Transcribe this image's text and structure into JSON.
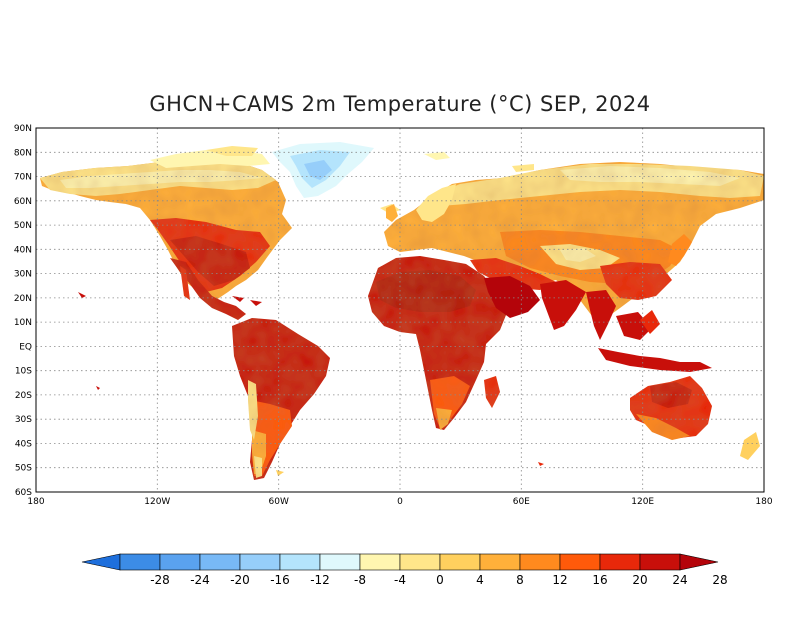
{
  "title": "GHCN+CAMS 2m Temperature (°C) SEP, 2024",
  "lat_labels": [
    "90N",
    "80N",
    "70N",
    "60N",
    "50N",
    "40N",
    "30N",
    "20N",
    "10N",
    "EQ",
    "10S",
    "20S",
    "30S",
    "40S",
    "50S",
    "60S"
  ],
  "lon_labels": [
    "180",
    "120W",
    "60W",
    "0",
    "60E",
    "120E",
    "180"
  ],
  "colorbar": {
    "ticks": [
      "-28",
      "-24",
      "-20",
      "-16",
      "-12",
      "-8",
      "-4",
      "0",
      "4",
      "8",
      "12",
      "16",
      "20",
      "24",
      "28"
    ],
    "colors": [
      "#1e6fdc",
      "#3c8ce6",
      "#5aa2ef",
      "#78b9f6",
      "#96cefa",
      "#b4e4fc",
      "#dff8fc",
      "#fff6b0",
      "#ffe68a",
      "#ffd05e",
      "#ffb03a",
      "#ff8a1e",
      "#ff5a0a",
      "#e8280a",
      "#c80f0a",
      "#b4040a"
    ]
  },
  "regions": [
    {
      "name": "Greenland",
      "color": "#b4e4fc"
    },
    {
      "name": "Sahara",
      "color": "#c80f0a"
    },
    {
      "name": "Australia",
      "color": "#e8280a"
    }
  ]
}
